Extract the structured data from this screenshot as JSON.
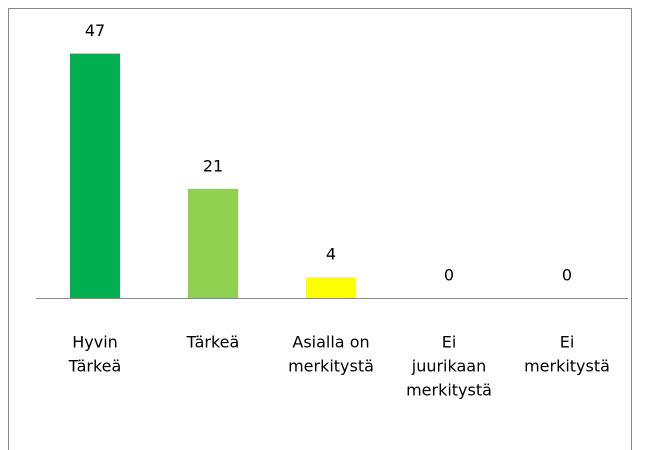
{
  "chart_data": {
    "type": "bar",
    "categories": [
      [
        "Hyvin",
        "Tärkeä"
      ],
      [
        "Tärkeä"
      ],
      [
        "Asialla on",
        "merkitystä"
      ],
      [
        "Ei",
        "juurikaan",
        "merkitystä"
      ],
      [
        "Ei",
        "merkitystä"
      ]
    ],
    "values": [
      47,
      21,
      4,
      0,
      0
    ],
    "colors": [
      "#00b050",
      "#92d050",
      "#ffff00",
      "#ffff00",
      "#ffff00"
    ],
    "ylim": [
      0,
      50
    ]
  }
}
